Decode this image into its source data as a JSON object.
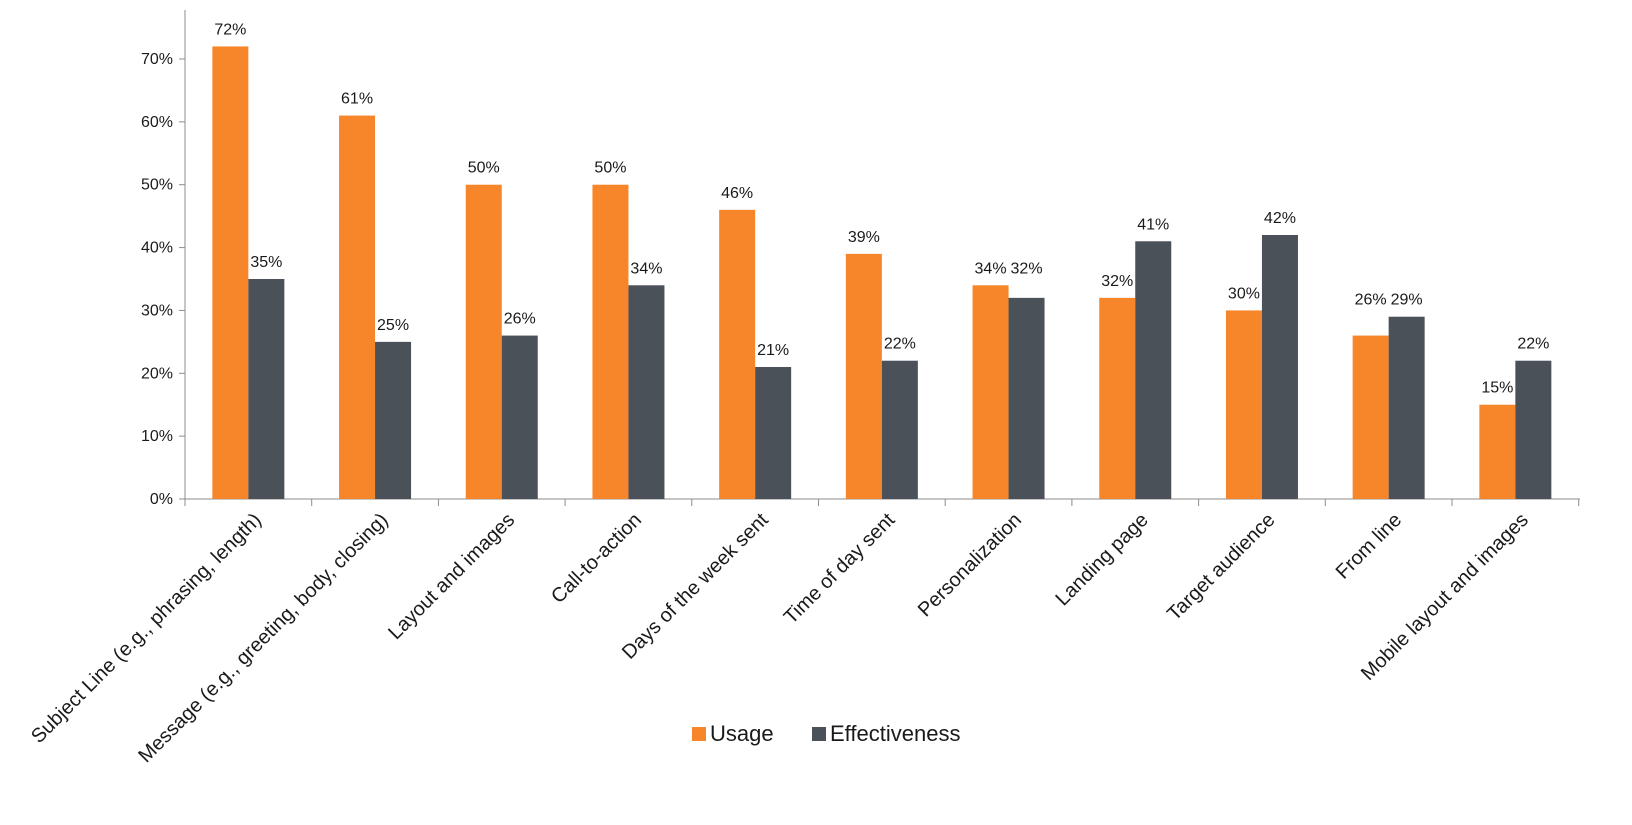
{
  "chart_data": {
    "type": "bar",
    "categories": [
      "Subject Line (e.g., phrasing, length)",
      "Message (e.g., greeting, body, closing)",
      "Layout and images",
      "Call-to-action",
      "Days of the week sent",
      "Time of day sent",
      "Personalization",
      "Landing page",
      "Target audience",
      "From line",
      "Mobile layout and images"
    ],
    "series": [
      {
        "name": "Usage",
        "color": "#f7862a",
        "values": [
          72,
          61,
          50,
          50,
          46,
          39,
          34,
          32,
          30,
          26,
          15
        ]
      },
      {
        "name": "Effectiveness",
        "color": "#4b5159",
        "values": [
          35,
          25,
          26,
          34,
          21,
          22,
          32,
          41,
          42,
          29,
          22
        ]
      }
    ],
    "ylim": [
      0,
      70
    ],
    "yticks": [
      0,
      10,
      20,
      30,
      40,
      50,
      60,
      70
    ],
    "ytick_labels": [
      "0%",
      "10%",
      "20%",
      "30%",
      "40%",
      "50%",
      "60%",
      "70%"
    ],
    "value_suffix": "%",
    "title": "",
    "xlabel": "",
    "ylabel": "",
    "grid": false,
    "legend_position": "bottom"
  }
}
